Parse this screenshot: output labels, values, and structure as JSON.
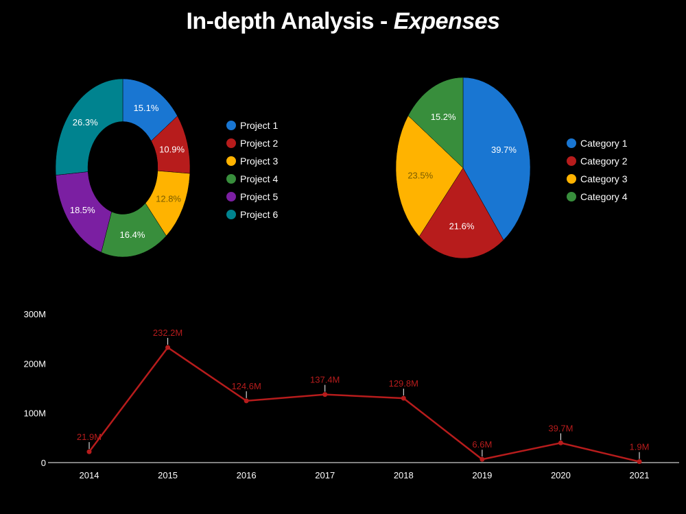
{
  "title": {
    "prefix": "In-depth Analysis - ",
    "emphasis": "Expenses"
  },
  "chart_data": [
    {
      "type": "pie",
      "variant": "donut",
      "legend_position": "right",
      "slices": [
        {
          "label": "Project 1",
          "value": 15.1,
          "display": "15.1%",
          "color": "#1976d2"
        },
        {
          "label": "Project 2",
          "value": 10.9,
          "display": "10.9%",
          "color": "#b71c1c"
        },
        {
          "label": "Project 3",
          "value": 12.8,
          "display": "12.8%",
          "color": "#ffb300"
        },
        {
          "label": "Project 4",
          "value": 16.4,
          "display": "16.4%",
          "color": "#388e3c"
        },
        {
          "label": "Project 5",
          "value": 18.5,
          "display": "18.5%",
          "color": "#7b1fa2"
        },
        {
          "label": "Project 6",
          "value": 26.3,
          "display": "26.3%",
          "color": "#00838f"
        }
      ]
    },
    {
      "type": "pie",
      "legend_position": "right",
      "slices": [
        {
          "label": "Category 1",
          "value": 39.7,
          "display": "39.7%",
          "color": "#1976d2"
        },
        {
          "label": "Category 2",
          "value": 21.6,
          "display": "21.6%",
          "color": "#b71c1c"
        },
        {
          "label": "Category 3",
          "value": 23.5,
          "display": "23.5%",
          "color": "#ffb300"
        },
        {
          "label": "Category 4",
          "value": 15.2,
          "display": "15.2%",
          "color": "#388e3c"
        }
      ]
    },
    {
      "type": "line",
      "x": [
        "2014",
        "2015",
        "2016",
        "2017",
        "2018",
        "2019",
        "2020",
        "2021"
      ],
      "y": [
        21.9,
        232.2,
        124.6,
        137.4,
        129.8,
        6.6,
        39.7,
        1.9
      ],
      "point_labels": [
        "21.9M",
        "232.2M",
        "124.6M",
        "137.4M",
        "129.8M",
        "6.6M",
        "39.7M",
        "1.9M"
      ],
      "y_unit": "M",
      "ylim": [
        0,
        300
      ],
      "y_ticks": [
        0,
        100,
        200,
        300
      ],
      "y_tick_labels": [
        "0",
        "100M",
        "200M",
        "300M"
      ],
      "grid": false,
      "color": "#b71c1c"
    }
  ]
}
